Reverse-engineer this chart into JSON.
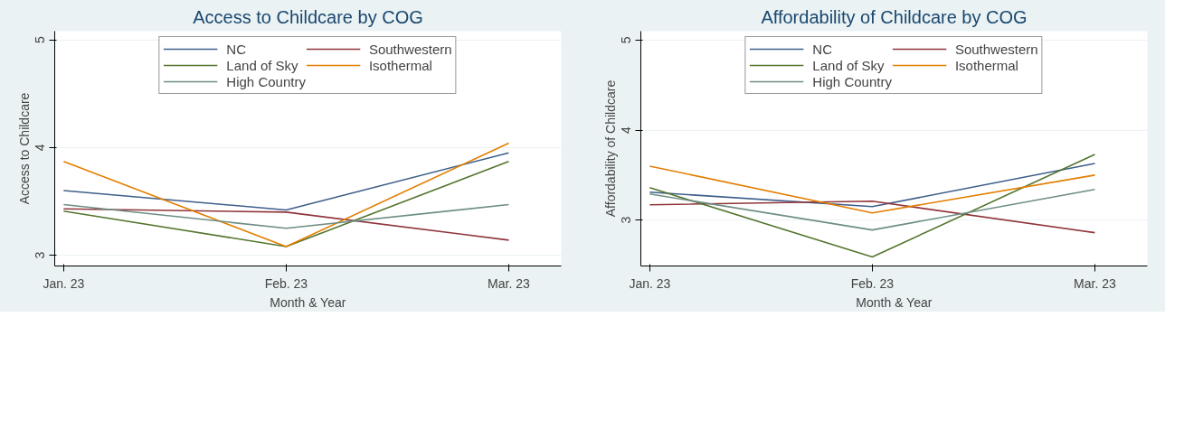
{
  "chart_data": [
    {
      "type": "line",
      "title": "Access to Childcare by COG",
      "xlabel": "Month & Year",
      "ylabel": "Access to Childcare",
      "categories": [
        "Jan. 23",
        "Feb. 23",
        "Mar. 23"
      ],
      "ylim": [
        2.9,
        5.08
      ],
      "yticks": [
        3,
        4,
        5
      ],
      "grid": "y",
      "legend": "top",
      "line_style": "solid",
      "series": [
        {
          "name": "NC",
          "color": "#3e5f8a",
          "values": [
            3.6,
            3.42,
            3.95
          ]
        },
        {
          "name": "Southwestern",
          "color": "#90353b",
          "values": [
            3.43,
            3.4,
            3.14
          ]
        },
        {
          "name": "Land of Sky",
          "color": "#55752f",
          "values": [
            3.41,
            3.08,
            3.87
          ]
        },
        {
          "name": "Isothermal",
          "color": "#e37e00",
          "values": [
            3.87,
            3.08,
            4.04
          ]
        },
        {
          "name": "High Country",
          "color": "#6e8e84",
          "values": [
            3.47,
            3.25,
            3.47
          ]
        }
      ]
    },
    {
      "type": "line",
      "title": "Affordability of Childcare by COG",
      "xlabel": "Month & Year",
      "ylabel": "Affordability of Childcare",
      "categories": [
        "Jan. 23",
        "Feb. 23",
        "Mar. 23"
      ],
      "ylim": [
        2.49,
        5.1
      ],
      "yticks": [
        3,
        4,
        5
      ],
      "grid": "y",
      "legend": "top",
      "line_style": "solid",
      "series": [
        {
          "name": "NC",
          "color": "#3e5f8a",
          "values": [
            3.31,
            3.15,
            3.63
          ]
        },
        {
          "name": "Southwestern",
          "color": "#90353b",
          "values": [
            3.17,
            3.21,
            2.86
          ]
        },
        {
          "name": "Land of Sky",
          "color": "#55752f",
          "values": [
            3.36,
            2.59,
            3.73
          ]
        },
        {
          "name": "Isothermal",
          "color": "#e37e00",
          "values": [
            3.6,
            3.08,
            3.5
          ]
        },
        {
          "name": "High Country",
          "color": "#6e8e84",
          "values": [
            3.29,
            2.89,
            3.34
          ]
        }
      ]
    }
  ]
}
